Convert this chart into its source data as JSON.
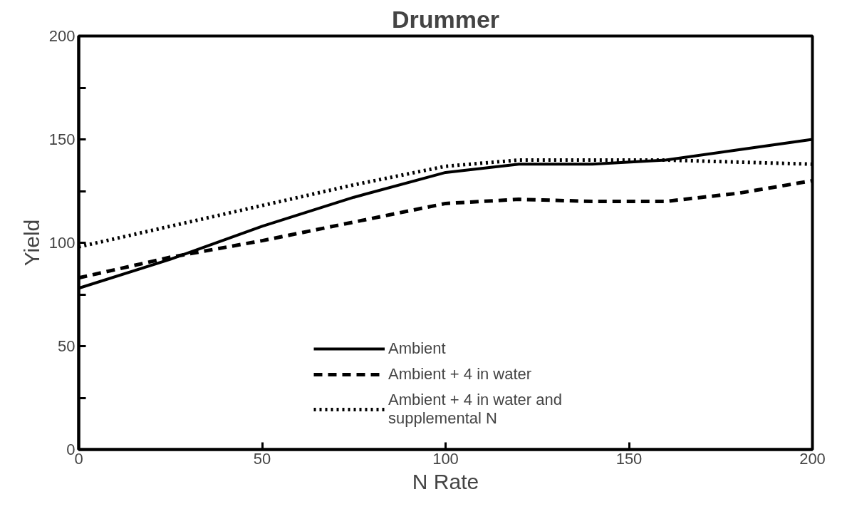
{
  "chart_data": {
    "type": "line",
    "title": "Drummer",
    "xlabel": "N Rate",
    "ylabel": "Yield",
    "xlim": [
      0,
      200
    ],
    "ylim": [
      0,
      200
    ],
    "xticks": [
      0,
      50,
      100,
      150,
      200
    ],
    "yticks": [
      0,
      {
        "value": 25,
        "label": null
      },
      50,
      {
        "value": 75,
        "label": null
      },
      100,
      {
        "value": 125,
        "label": null
      },
      150,
      {
        "value": 175,
        "label": null
      },
      200
    ],
    "grid": false,
    "legend": "bottom",
    "marker": "none",
    "series": [
      {
        "name": "Ambient",
        "color": "#000000",
        "line_style": "solid",
        "x": [
          0,
          25,
          50,
          75,
          100,
          120,
          140,
          160,
          180,
          200
        ],
        "values": [
          78,
          92,
          108,
          122,
          134,
          138,
          138,
          140,
          145,
          150
        ]
      },
      {
        "name": "Ambient + 4 in water",
        "color": "#000000",
        "line_style": "dashed",
        "x": [
          0,
          25,
          50,
          75,
          100,
          120,
          140,
          160,
          180,
          200
        ],
        "values": [
          83,
          93,
          101,
          110,
          119,
          121,
          120,
          120,
          124,
          130
        ]
      },
      {
        "name": "Ambient + 4 in water and supplemental N",
        "color": "#000000",
        "line_style": "dotted",
        "x": [
          0,
          25,
          50,
          75,
          100,
          120,
          140,
          160,
          180,
          200
        ],
        "values": [
          98,
          108,
          118,
          128,
          137,
          140,
          140,
          140,
          139,
          138
        ]
      }
    ]
  }
}
